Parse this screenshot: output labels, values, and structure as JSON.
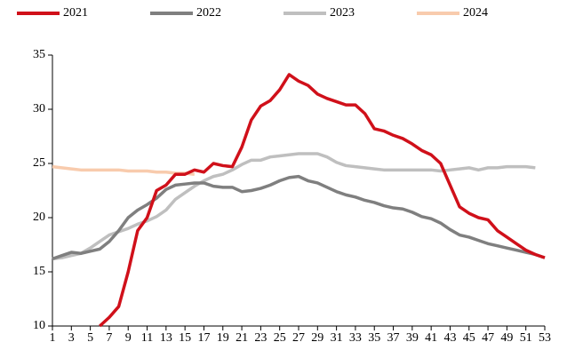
{
  "chart_data": {
    "type": "line",
    "x": [
      1,
      2,
      3,
      4,
      5,
      6,
      7,
      8,
      9,
      10,
      11,
      12,
      13,
      14,
      15,
      16,
      17,
      18,
      19,
      20,
      21,
      22,
      23,
      24,
      25,
      26,
      27,
      28,
      29,
      30,
      31,
      32,
      33,
      34,
      35,
      36,
      37,
      38,
      39,
      40,
      41,
      42,
      43,
      44,
      45,
      46,
      47,
      48,
      49,
      50,
      51,
      52,
      53
    ],
    "xlim": [
      1,
      53
    ],
    "xticks": [
      1,
      3,
      5,
      7,
      9,
      11,
      13,
      15,
      17,
      19,
      21,
      23,
      25,
      27,
      29,
      31,
      33,
      35,
      37,
      39,
      41,
      43,
      45,
      47,
      49,
      51,
      53
    ],
    "ylim": [
      10,
      35
    ],
    "yticks": [
      10,
      15,
      20,
      25,
      30,
      35
    ],
    "legend": "top",
    "series": [
      {
        "name": "2021",
        "color": "#d0101a",
        "values": [
          null,
          null,
          null,
          null,
          null,
          10.0,
          10.8,
          11.8,
          15,
          18.8,
          20,
          22.5,
          23,
          24,
          24,
          24.4,
          24.2,
          25,
          24.8,
          24.7,
          26.5,
          29,
          30.3,
          30.8,
          31.8,
          33.2,
          32.6,
          32.2,
          31.4,
          31,
          30.7,
          30.4,
          30.4,
          29.6,
          28.2,
          28,
          27.6,
          27.3,
          26.8,
          26.2,
          25.8,
          25,
          23,
          21,
          20.4,
          20,
          19.8,
          18.8,
          18.2,
          17.6,
          17,
          16.6,
          16.3
        ]
      },
      {
        "name": "2022",
        "color": "#7f7f7f",
        "values": [
          16.2,
          16.5,
          16.8,
          16.7,
          16.9,
          17.1,
          17.8,
          18.8,
          20,
          20.7,
          21.2,
          21.8,
          22.6,
          23,
          23.1,
          23.2,
          23.2,
          22.9,
          22.8,
          22.8,
          22.4,
          22.5,
          22.7,
          23,
          23.4,
          23.7,
          23.8,
          23.4,
          23.2,
          22.8,
          22.4,
          22.1,
          21.9,
          21.6,
          21.4,
          21.1,
          20.9,
          20.8,
          20.5,
          20.1,
          19.9,
          19.5,
          18.9,
          18.4,
          18.2,
          17.9,
          17.6,
          17.4,
          17.2,
          17,
          16.8,
          16.6,
          16.3
        ]
      },
      {
        "name": "2023",
        "color": "#bfbfbf",
        "values": [
          16.2,
          16.3,
          16.5,
          16.7,
          17.2,
          17.8,
          18.4,
          18.7,
          19,
          19.4,
          19.7,
          20.1,
          20.7,
          21.7,
          22.3,
          22.9,
          23.4,
          23.8,
          24,
          24.4,
          24.9,
          25.3,
          25.3,
          25.6,
          25.7,
          25.8,
          25.9,
          25.9,
          25.9,
          25.6,
          25.1,
          24.8,
          24.7,
          24.6,
          24.5,
          24.4,
          24.4,
          24.4,
          24.4,
          24.4,
          24.4,
          24.3,
          24.4,
          24.5,
          24.6,
          24.4,
          24.6,
          24.6,
          24.7,
          24.7,
          24.7,
          24.6,
          null
        ]
      },
      {
        "name": "2024",
        "color": "#f8cbad",
        "values": [
          24.7,
          24.6,
          24.5,
          24.4,
          24.4,
          24.4,
          24.4,
          24.4,
          24.3,
          24.3,
          24.3,
          24.2,
          24.2,
          24.1,
          24.1,
          24.0,
          null,
          null,
          null,
          null,
          null,
          null,
          null,
          null,
          null,
          null,
          null,
          null,
          null,
          null,
          null,
          null,
          null,
          null,
          null,
          null,
          null,
          null,
          null,
          null,
          null,
          null,
          null,
          null,
          null,
          null,
          null,
          null,
          null,
          null,
          null,
          null,
          null
        ]
      }
    ]
  }
}
